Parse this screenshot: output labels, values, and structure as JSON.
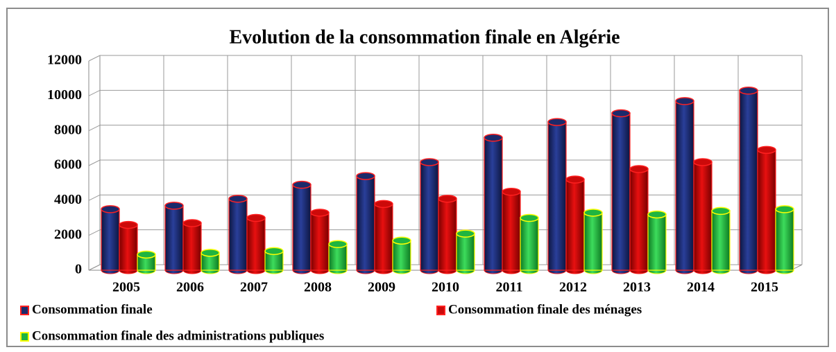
{
  "chart_data": {
    "type": "bar3d",
    "title": "Evolution de la consommation finale en Algérie",
    "categories": [
      "2005",
      "2006",
      "2007",
      "2008",
      "2009",
      "2010",
      "2011",
      "2012",
      "2013",
      "2014",
      "2015"
    ],
    "series": [
      {
        "name": "Consommation finale",
        "color": "#1c2a6b",
        "values": [
          3500,
          3700,
          4100,
          4900,
          5400,
          6200,
          7600,
          8500,
          9000,
          9700,
          10300
        ]
      },
      {
        "name": "Consommation finale des ménages",
        "color": "#cc0a0a",
        "values": [
          2600,
          2700,
          3000,
          3300,
          3800,
          4100,
          4500,
          5200,
          5800,
          6200,
          6900
        ]
      },
      {
        "name": "Consommation finale des administrations publiques",
        "color": "#1fb540",
        "values": [
          900,
          1000,
          1100,
          1500,
          1700,
          2100,
          3000,
          3300,
          3200,
          3400,
          3500
        ]
      }
    ],
    "ylim": [
      0,
      12000
    ],
    "yticks": [
      0,
      2000,
      4000,
      6000,
      8000,
      10000,
      12000
    ],
    "grid": true
  }
}
